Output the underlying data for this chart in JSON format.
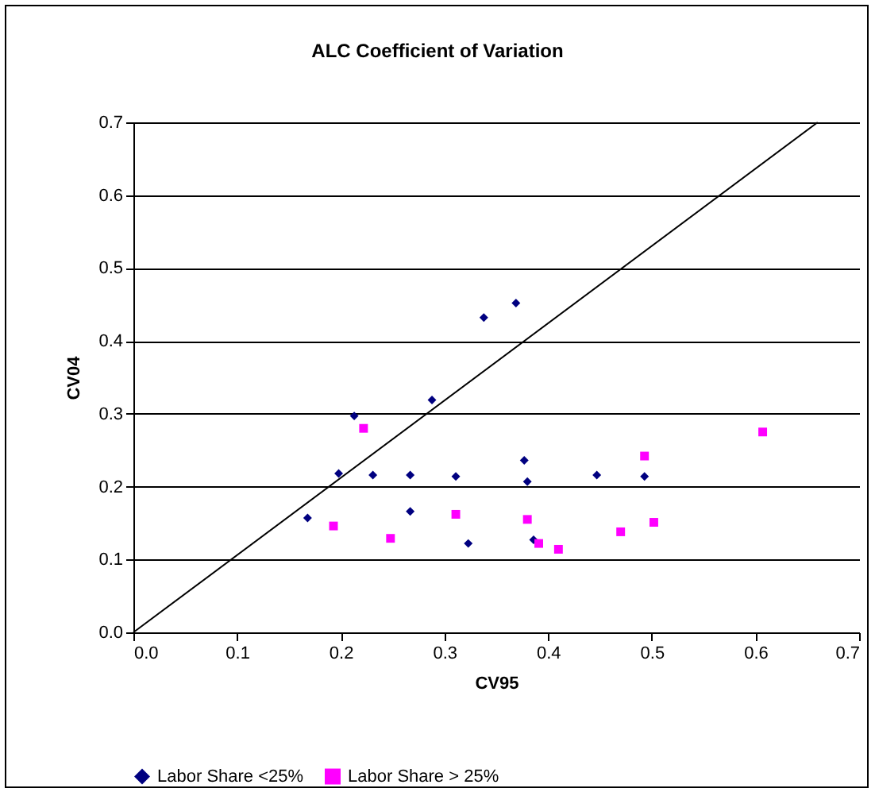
{
  "chart_data": {
    "type": "scatter",
    "title": "ALC Coefficient of Variation",
    "xlabel": "CV95",
    "ylabel": "CV04",
    "xlim": [
      0,
      0.7
    ],
    "ylim": [
      0,
      0.7
    ],
    "xticks": [
      {
        "value": 0,
        "label": "0.0"
      },
      0.1,
      0.2,
      0.3,
      0.4,
      0.5,
      0.6,
      0.7
    ],
    "yticks": [
      {
        "value": 0,
        "label": "0.0"
      },
      0.1,
      0.2,
      0.3,
      0.4,
      0.5,
      0.6,
      0.7
    ],
    "grid": "y",
    "legend": "bottom",
    "series": [
      {
        "name": "Labor Share <25%",
        "marker": "diamond",
        "color": "#000080",
        "x": [
          0.168,
          0.198,
          0.213,
          0.231,
          0.267,
          0.267,
          0.288,
          0.311,
          0.323,
          0.338,
          0.369,
          0.377,
          0.38,
          0.386,
          0.447,
          0.493
        ],
        "values": [
          0.157,
          0.218,
          0.297,
          0.216,
          0.216,
          0.166,
          0.319,
          0.214,
          0.122,
          0.432,
          0.452,
          0.236,
          0.207,
          0.127,
          0.216,
          0.214
        ]
      },
      {
        "name": "Labor Share > 25%",
        "marker": "square",
        "color": "#ff00ff",
        "x": [
          0.193,
          0.222,
          0.248,
          0.311,
          0.38,
          0.391,
          0.41,
          0.47,
          0.502,
          0.493,
          0.607
        ],
        "values": [
          0.146,
          0.28,
          0.129,
          0.162,
          0.155,
          0.122,
          0.114,
          0.138,
          0.151,
          0.242,
          0.275
        ]
      },
      {
        "type": "line",
        "marker": "none",
        "line_style": "solid",
        "color": "#000000",
        "x": [
          0,
          0.66
        ],
        "values": [
          0,
          0.7
        ]
      }
    ]
  }
}
